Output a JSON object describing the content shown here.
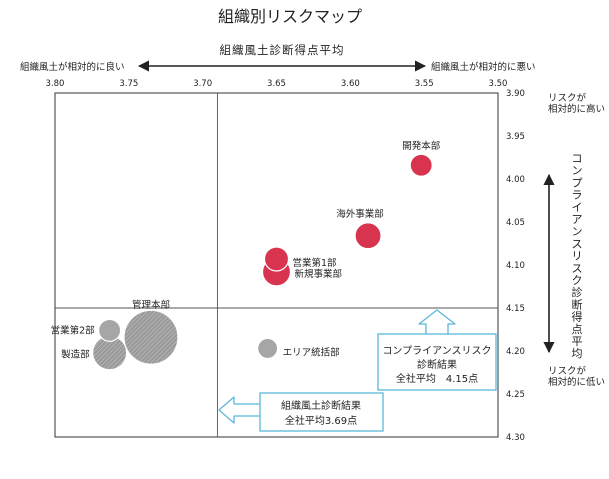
{
  "chart_data": {
    "type": "scatter",
    "title": "組織別リスクマップ",
    "xlabel": "組織風土診断得点平均",
    "ylabel": "コンプライアンスリスク診断得点平均",
    "x_left_note": "組織風土が相対的に良い",
    "x_right_note": "組織風土が相対的に悪い",
    "y_top_note": "リスクが相対的に高い",
    "y_bottom_note": "リスクが相対的に低い",
    "xlim": [
      3.8,
      3.5
    ],
    "ylim": [
      3.9,
      4.3
    ],
    "x_ticks": [
      "3.80",
      "3.75",
      "3.70",
      "3.65",
      "3.60",
      "3.55",
      "3.50"
    ],
    "y_ticks": [
      "3.90",
      "3.95",
      "4.00",
      "4.05",
      "4.10",
      "4.15",
      "4.20",
      "4.25",
      "4.30"
    ],
    "x_reference": 3.69,
    "y_reference": 4.15,
    "callout_x": {
      "line1": "組織風土診断結果",
      "line2": "全社平均3.69点"
    },
    "callout_y": {
      "line1": "コンプライアンスリスク",
      "line2": "診断結果",
      "line3": "全社平均　4.15点"
    },
    "points": [
      {
        "name": "開発本部",
        "x": 3.552,
        "y": 3.984,
        "size": 11,
        "group": "high"
      },
      {
        "name": "海外事業部",
        "x": 3.588,
        "y": 4.066,
        "size": 13,
        "group": "high"
      },
      {
        "name": "営業第1部",
        "x": 3.65,
        "y": 4.093,
        "size": 12,
        "group": "high"
      },
      {
        "name": "新規事業部",
        "x": 3.65,
        "y": 4.108,
        "size": 14,
        "group": "high"
      },
      {
        "name": "エリア統括部",
        "x": 3.656,
        "y": 4.197,
        "size": 10,
        "group": "low"
      },
      {
        "name": "営業第2部",
        "x": 3.763,
        "y": 4.176,
        "size": 11,
        "group": "low"
      },
      {
        "name": "管理本部",
        "x": 3.735,
        "y": 4.184,
        "size": 27,
        "group": "low"
      },
      {
        "name": "製造部",
        "x": 3.763,
        "y": 4.202,
        "size": 17,
        "group": "low"
      }
    ],
    "colors": {
      "high": "#d9344f",
      "low": "#a6a6a6",
      "callout": "#5bb8d8"
    }
  }
}
